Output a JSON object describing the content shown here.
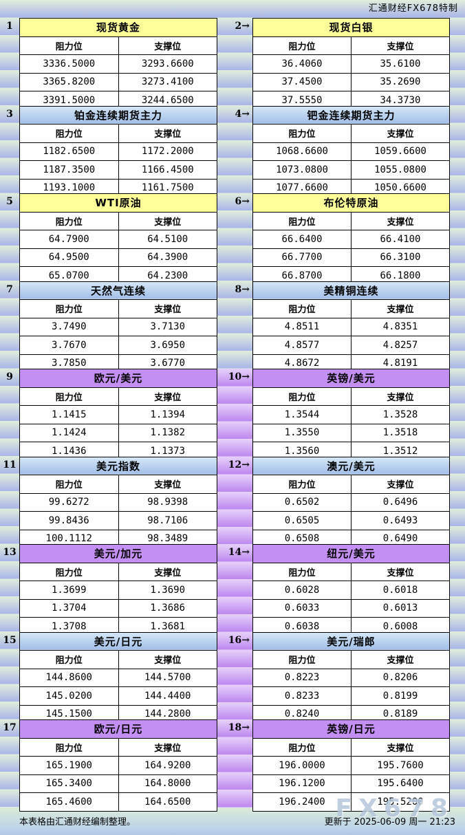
{
  "header": {
    "caption": "汇通财经FX678特制"
  },
  "labels": {
    "resistance": "阻力位",
    "support": "支撑位"
  },
  "colors": {
    "yellow_title": "#ffff9a",
    "blue_title_top": "#d6e8f7",
    "blue_title_bottom": "#a2bfe8",
    "purple_title": "#c48ff2",
    "stripe_green": "#e1eedb",
    "stripe_blue": "#a9b5e8",
    "purple_gutter": "#bd87ef",
    "watermark_color": "#b5c7db"
  },
  "sections": [
    {
      "num": "1",
      "title": "现货黄金",
      "style": "yellow",
      "rows": [
        [
          "3336.5000",
          "3293.6600"
        ],
        [
          "3365.8200",
          "3273.4100"
        ],
        [
          "3391.5000",
          "3244.6500"
        ]
      ]
    },
    {
      "num": "2→",
      "title": "现货白银",
      "style": "yellow",
      "rows": [
        [
          "36.4060",
          "35.6100"
        ],
        [
          "37.4500",
          "35.2690"
        ],
        [
          "37.5550",
          "34.3730"
        ]
      ]
    },
    {
      "num": "3",
      "title": "铂金连续期货主力",
      "style": "blue",
      "rows": [
        [
          "1182.6500",
          "1172.2000"
        ],
        [
          "1187.3500",
          "1166.4500"
        ],
        [
          "1193.1000",
          "1161.7500"
        ]
      ]
    },
    {
      "num": "4→",
      "title": "钯金连续期货主力",
      "style": "blue",
      "rows": [
        [
          "1068.6600",
          "1059.6600"
        ],
        [
          "1073.0800",
          "1055.0800"
        ],
        [
          "1077.6600",
          "1050.6600"
        ]
      ]
    },
    {
      "num": "5",
      "title": "WTI原油",
      "style": "yellow",
      "rows": [
        [
          "64.7900",
          "64.5100"
        ],
        [
          "64.9500",
          "64.3900"
        ],
        [
          "65.0700",
          "64.2300"
        ]
      ]
    },
    {
      "num": "6→",
      "title": "布伦特原油",
      "style": "yellow",
      "rows": [
        [
          "66.6400",
          "66.4100"
        ],
        [
          "66.7700",
          "66.3100"
        ],
        [
          "66.8700",
          "66.1800"
        ]
      ]
    },
    {
      "num": "7",
      "title": "天然气连续",
      "style": "blue",
      "rows": [
        [
          "3.7490",
          "3.7130"
        ],
        [
          "3.7670",
          "3.6950"
        ],
        [
          "3.7850",
          "3.6770"
        ]
      ]
    },
    {
      "num": "8→",
      "title": "美精铜连续",
      "style": "blue",
      "rows": [
        [
          "4.8511",
          "4.8351"
        ],
        [
          "4.8577",
          "4.8257"
        ],
        [
          "4.8672",
          "4.8191"
        ]
      ]
    },
    {
      "num": "9",
      "title": "欧元/美元",
      "style": "purple",
      "rows": [
        [
          "1.1415",
          "1.1394"
        ],
        [
          "1.1424",
          "1.1382"
        ],
        [
          "1.1436",
          "1.1373"
        ]
      ]
    },
    {
      "num": "10→",
      "title": "英镑/美元",
      "style": "purple",
      "rows": [
        [
          "1.3544",
          "1.3528"
        ],
        [
          "1.3550",
          "1.3518"
        ],
        [
          "1.3560",
          "1.3512"
        ]
      ]
    },
    {
      "num": "11",
      "title": "美元指数",
      "style": "blue",
      "rows": [
        [
          "99.6272",
          "98.9398"
        ],
        [
          "99.8436",
          "98.7106"
        ],
        [
          "100.1112",
          "98.3489"
        ]
      ]
    },
    {
      "num": "12→",
      "title": "澳元/美元",
      "style": "blue",
      "rows": [
        [
          "0.6502",
          "0.6496"
        ],
        [
          "0.6505",
          "0.6493"
        ],
        [
          "0.6508",
          "0.6490"
        ]
      ]
    },
    {
      "num": "13",
      "title": "美元/加元",
      "style": "purple",
      "rows": [
        [
          "1.3699",
          "1.3690"
        ],
        [
          "1.3704",
          "1.3686"
        ],
        [
          "1.3708",
          "1.3681"
        ]
      ]
    },
    {
      "num": "14→",
      "title": "纽元/美元",
      "style": "purple",
      "rows": [
        [
          "0.6028",
          "0.6018"
        ],
        [
          "0.6033",
          "0.6013"
        ],
        [
          "0.6038",
          "0.6008"
        ]
      ]
    },
    {
      "num": "15",
      "title": "美元/日元",
      "style": "blue",
      "rows": [
        [
          "144.8600",
          "144.5700"
        ],
        [
          "145.0200",
          "144.4400"
        ],
        [
          "145.1500",
          "144.2800"
        ]
      ]
    },
    {
      "num": "16→",
      "title": "美元/瑞郎",
      "style": "blue",
      "rows": [
        [
          "0.8223",
          "0.8206"
        ],
        [
          "0.8233",
          "0.8199"
        ],
        [
          "0.8240",
          "0.8189"
        ]
      ]
    },
    {
      "num": "17",
      "title": "欧元/日元",
      "style": "purple",
      "rows": [
        [
          "165.1900",
          "164.9200"
        ],
        [
          "165.3400",
          "164.8000"
        ],
        [
          "165.4600",
          "164.6500"
        ]
      ]
    },
    {
      "num": "18→",
      "title": "英镑/日元",
      "style": "purple",
      "rows": [
        [
          "196.0000",
          "195.7600"
        ],
        [
          "196.1200",
          "195.6400"
        ],
        [
          "196.2400",
          "195.5200"
        ]
      ]
    }
  ],
  "footer": {
    "note": "本表格由汇通财经编制整理。",
    "updated": "更新于 2025-06-09 周一 21:23",
    "watermark": "FX678"
  }
}
